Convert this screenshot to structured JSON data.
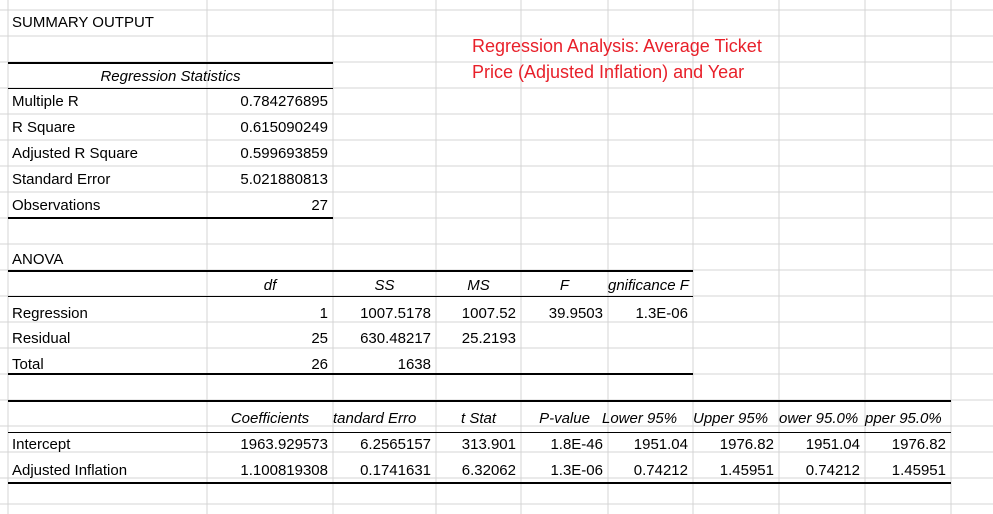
{
  "title": "SUMMARY OUTPUT",
  "note": {
    "line1": "Regression Analysis:  Average Ticket",
    "line2": "Price (Adjusted Inflation) and Year",
    "color": "#e8202a"
  },
  "regression_statistics": {
    "header": "Regression Statistics",
    "rows": [
      {
        "label": "Multiple R",
        "value": "0.784276895"
      },
      {
        "label": "R Square",
        "value": "0.615090249"
      },
      {
        "label": "Adjusted R Square",
        "value": "0.599693859"
      },
      {
        "label": "Standard Error",
        "value": "5.021880813"
      },
      {
        "label": "Observations",
        "value": "27"
      }
    ]
  },
  "anova": {
    "label": "ANOVA",
    "headers": {
      "df": "df",
      "ss": "SS",
      "ms": "MS",
      "f": "F",
      "sig": "gnificance F"
    },
    "rows": [
      {
        "label": "Regression",
        "df": "1",
        "ss": "1007.5178",
        "ms": "1007.52",
        "f": "39.9503",
        "sig": "1.3E-06"
      },
      {
        "label": "Residual",
        "df": "25",
        "ss": "630.48217",
        "ms": "25.2193"
      },
      {
        "label": "Total",
        "df": "26",
        "ss": "1638"
      }
    ]
  },
  "coefficients": {
    "headers": {
      "coef": "Coefficients",
      "se": "tandard Erro",
      "t": "t Stat",
      "p": "P-value",
      "lower95": "Lower 95%",
      "upper95": "Upper 95%",
      "lower950": "ower 95.0%",
      "upper950": "pper 95.0%"
    },
    "rows": [
      {
        "label": "Intercept",
        "coef": "1963.929573",
        "se": "6.2565157",
        "t": "313.901",
        "p": "1.8E-46",
        "lower95": "1951.04",
        "upper95": "1976.82",
        "lower950": "1951.04",
        "upper950": "1976.82"
      },
      {
        "label": "Adjusted Inflation",
        "coef": "1.100819308",
        "se": "0.1741631",
        "t": "6.32062",
        "p": "1.3E-06",
        "lower95": "0.74212",
        "upper95": "1.45951",
        "lower950": "0.74212",
        "upper950": "1.45951"
      }
    ]
  }
}
